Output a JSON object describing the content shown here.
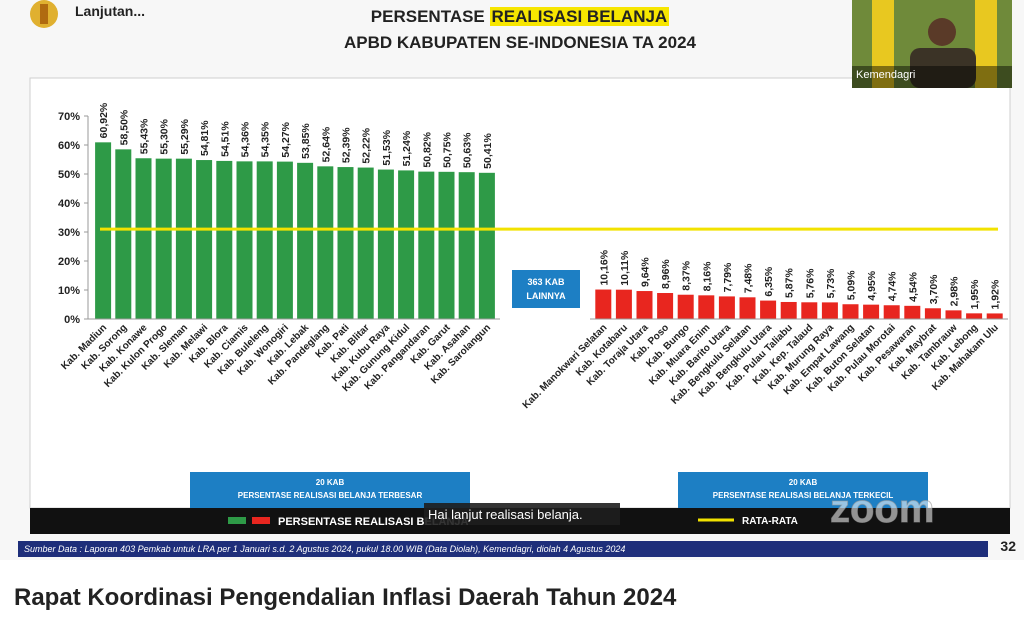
{
  "header": {
    "label": "Lanjutan..."
  },
  "chart_data": {
    "type": "bar",
    "title": "PERSENTASE",
    "title_highlight": "REALISASI BELANJA",
    "subtitle": "APBD KABUPATEN SE-INDONESIA TA 2024",
    "categories": [
      "Kab. Madiun",
      "Kab. Sorong",
      "Kab. Konawe",
      "Kab. Kulon Progo",
      "Kab. Sleman",
      "Kab. Melawi",
      "Kab. Blora",
      "Kab. Ciamis",
      "Kab. Buleleng",
      "Kab. Wonogiri",
      "Kab. Lebak",
      "Kab. Pandeglang",
      "Kab. Pati",
      "Kab. Blitar",
      "Kab. Kubu Raya",
      "Kab. Gunung Kidul",
      "Kab. Pangandaran",
      "Kab. Garut",
      "Kab. Asahan",
      "Kab. Sarolangun",
      "Kab. Manokwari Selatan",
      "Kab. Kotabaru",
      "Kab. Toraja Utara",
      "Kab. Poso",
      "Kab. Bungo",
      "Kab. Muara Enim",
      "Kab. Barito Utara",
      "Kab. Bengkulu Selatan",
      "Kab. Bengkulu Utara",
      "Kab. Pulau Taliabu",
      "Kab. Kep. Talaud",
      "Kab. Murung Raya",
      "Kab. Empat Lawang",
      "Kab. Buton Selatan",
      "Kab. Pulau Morotai",
      "Kab. Pesawaran",
      "Kab. Maybrat",
      "Kab. Tambrauw",
      "Kab. Lebong",
      "Kab. Mahakam Ulu"
    ],
    "series": [
      {
        "color": "#2e9a47",
        "values": [
          60.92,
          58.5,
          55.43,
          55.3,
          55.29,
          54.81,
          54.51,
          54.36,
          54.35,
          54.27,
          53.85,
          52.64,
          52.39,
          52.22,
          51.53,
          51.24,
          50.82,
          50.75,
          50.63,
          50.41,
          null,
          null,
          null,
          null,
          null,
          null,
          null,
          null,
          null,
          null,
          null,
          null,
          null,
          null,
          null,
          null,
          null,
          null,
          null,
          null
        ],
        "value_labels": [
          "60,92%",
          "58,50%",
          "55,43%",
          "55,30%",
          "55,29%",
          "54,81%",
          "54,51%",
          "54,36%",
          "54,35%",
          "54,27%",
          "53,85%",
          "52,64%",
          "52,39%",
          "52,22%",
          "51,53%",
          "51,24%",
          "50,82%",
          "50,75%",
          "50,63%",
          "50,41%",
          null,
          null,
          null,
          null,
          null,
          null,
          null,
          null,
          null,
          null,
          null,
          null,
          null,
          null,
          null,
          null,
          null,
          null,
          null,
          null
        ]
      },
      {
        "color": "#e8261f",
        "values": [
          null,
          null,
          null,
          null,
          null,
          null,
          null,
          null,
          null,
          null,
          null,
          null,
          null,
          null,
          null,
          null,
          null,
          null,
          null,
          null,
          10.16,
          10.11,
          9.64,
          8.96,
          8.37,
          8.16,
          7.79,
          7.48,
          6.35,
          5.87,
          5.76,
          5.73,
          5.09,
          4.95,
          4.74,
          4.54,
          3.7,
          2.98,
          1.95,
          1.92
        ],
        "value_labels": [
          null,
          null,
          null,
          null,
          null,
          null,
          null,
          null,
          null,
          null,
          null,
          null,
          null,
          null,
          null,
          null,
          null,
          null,
          null,
          null,
          "10,16%",
          "10,11%",
          "9,64%",
          "8,96%",
          "8,37%",
          "8,16%",
          "7,79%",
          "7,48%",
          "6,35%",
          "5,87%",
          "5,76%",
          "5,73%",
          "5,09%",
          "4,95%",
          "4,74%",
          "4,54%",
          "3,70%",
          "2,98%",
          "1,95%",
          "1,92%"
        ]
      }
    ],
    "legend_label": "PERSENTASE REALISASI BELANJA",
    "reference_line": {
      "value": 31,
      "label": "RATA-RATA",
      "color": "#f2e200"
    },
    "gap_label": [
      "363 KAB",
      "LAINNYA"
    ],
    "group_labels": [
      [
        "20 KAB",
        "PERSENTASE REALISASI BELANJA TERBESAR"
      ],
      [
        "20 KAB",
        "PERSENTASE REALISASI BELANJA TERKECIL"
      ]
    ],
    "ylim": [
      0,
      70
    ],
    "yticks": [
      {
        "value": 0,
        "label": "0%"
      },
      {
        "value": 10,
        "label": "10%"
      },
      {
        "value": 20,
        "label": "20%"
      },
      {
        "value": 30,
        "label": "30%"
      },
      {
        "value": 40,
        "label": "40%"
      },
      {
        "value": 50,
        "label": "50%"
      },
      {
        "value": 60,
        "label": "60%"
      },
      {
        "value": 70,
        "label": "70%"
      }
    ]
  },
  "video": {
    "participant": "Kemendagri",
    "subtitle": "Hai lanjut realisasi belanja.",
    "watermark": "zoom"
  },
  "footer": {
    "source": "Sumber Data : Laporan 403 Pemkab untuk LRA per 1 Januari s.d. 2 Agustus 2024, pukul 18.00 WIB (Data Diolah), Kemendagri, diolah 4 Agustus 2024",
    "page": "32"
  },
  "caption": "Rapat Koordinasi Pengendalian Inflasi Daerah Tahun 2024"
}
